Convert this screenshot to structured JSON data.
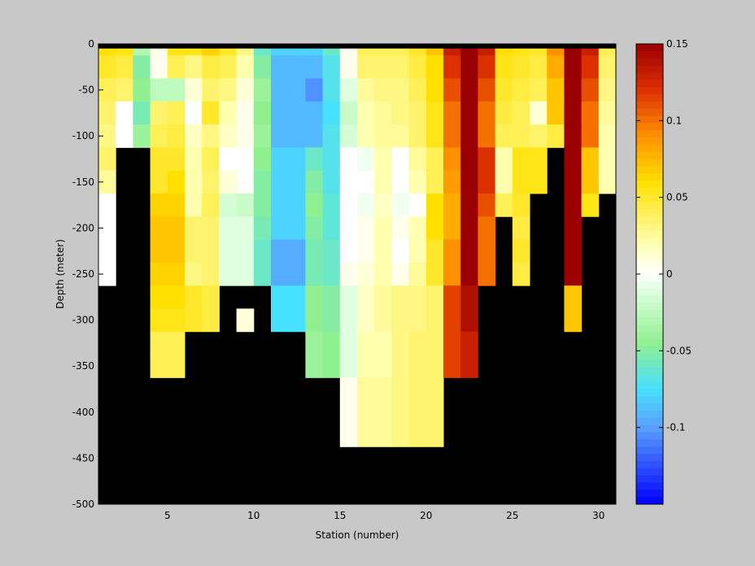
{
  "chart_data": {
    "type": "heatmap",
    "title": "",
    "xlabel": "Station (number)",
    "ylabel": "Depth (meter)",
    "xlim": [
      1,
      31
    ],
    "ylim": [
      -500,
      0
    ],
    "xticks": [
      5,
      10,
      15,
      20,
      25,
      30
    ],
    "yticks": [
      0,
      -50,
      -100,
      -150,
      -200,
      -250,
      -300,
      -350,
      -400,
      -450,
      -500
    ],
    "colorbar": {
      "range": [
        -0.15,
        0.15
      ],
      "ticks": [
        0.15,
        0.1,
        0.05,
        0,
        -0.05,
        -0.1
      ],
      "tick_labels": [
        "0.15",
        "0.1",
        "0.05",
        "0",
        "-0.05",
        "-0.1"
      ],
      "colormap": [
        [
          -0.15,
          "#0000ff"
        ],
        [
          -0.1,
          "#5aa0ff"
        ],
        [
          -0.075,
          "#48e0ff"
        ],
        [
          -0.045,
          "#90f090"
        ],
        [
          -0.01,
          "#e0ffe0"
        ],
        [
          0,
          "#ffffff"
        ],
        [
          0.02,
          "#ffffb0"
        ],
        [
          0.06,
          "#ffe000"
        ],
        [
          0.09,
          "#ff9000"
        ],
        [
          0.12,
          "#dd3000"
        ],
        [
          0.15,
          "#9a0000"
        ]
      ]
    },
    "no_data_color": "#000000",
    "depth_bins": [
      0,
      -12.5,
      -37.5,
      -62.5,
      -87.5,
      -112.5,
      -137.5,
      -162.5,
      -187.5,
      -212.5,
      -237.5,
      -262.5,
      -287.5,
      -312.5,
      -337.5,
      -362.5,
      -387.5,
      -412.5,
      -437.5,
      -462.5,
      -487.5,
      -500
    ],
    "stations": [
      1.5,
      2.5,
      3.5,
      4.5,
      5.5,
      6.5,
      7.5,
      8.5,
      9.5,
      10.5,
      11.5,
      12.5,
      13.5,
      14.5,
      15.5,
      16.5,
      17.5,
      18.5,
      19.5,
      20.5,
      21.5,
      22.5,
      23.5,
      24.5,
      25.5,
      26.5,
      27.5,
      28.5,
      29.5,
      30.5
    ],
    "values": [
      [
        0.06,
        0.055,
        -0.03,
        0.005,
        0.055,
        0.055,
        0.065,
        0.05,
        0.03,
        -0.06,
        -0.08,
        -0.08,
        -0.08,
        -0.06,
        0.005,
        0.04,
        0.04,
        0.04,
        0.05,
        0.07,
        0.13,
        0.15,
        0.13,
        0.06,
        0.055,
        0.05,
        0.09,
        0.15,
        0.13,
        0.04
      ],
      [
        0.05,
        0.045,
        -0.05,
        0.005,
        0.04,
        0.03,
        0.045,
        0.04,
        0.02,
        -0.05,
        -0.09,
        -0.09,
        -0.09,
        -0.07,
        0.005,
        0.035,
        0.035,
        0.035,
        0.045,
        0.06,
        0.12,
        0.15,
        0.12,
        0.055,
        0.05,
        0.045,
        0.08,
        0.15,
        0.12,
        0.035
      ],
      [
        0.04,
        0.035,
        -0.045,
        -0.025,
        -0.025,
        0.01,
        0.035,
        0.03,
        0.01,
        -0.04,
        -0.09,
        -0.09,
        -0.105,
        -0.07,
        -0.01,
        0.025,
        0.03,
        0.03,
        0.04,
        0.06,
        0.11,
        0.15,
        0.11,
        0.05,
        0.045,
        0.04,
        0.07,
        0.15,
        0.11,
        0.03
      ],
      [
        0.035,
        0.0,
        -0.055,
        0.035,
        0.04,
        0.0,
        0.05,
        0.02,
        0.005,
        -0.045,
        -0.09,
        -0.09,
        -0.09,
        -0.075,
        -0.02,
        0.02,
        0.025,
        0.03,
        0.035,
        0.055,
        0.1,
        0.15,
        0.1,
        0.045,
        0.04,
        0.01,
        0.07,
        0.15,
        0.1,
        0.025
      ],
      [
        0.03,
        0.0,
        -0.04,
        0.04,
        0.045,
        0.015,
        0.03,
        0.015,
        0.005,
        -0.04,
        -0.09,
        -0.09,
        -0.09,
        -0.07,
        -0.015,
        0.02,
        0.025,
        0.025,
        0.035,
        0.055,
        0.1,
        0.15,
        0.1,
        0.04,
        0.04,
        0.035,
        0.045,
        0.15,
        0.1,
        0.02
      ],
      [
        0.035,
        null,
        null,
        0.05,
        0.05,
        0.02,
        0.04,
        0.0,
        0.0,
        -0.045,
        -0.08,
        -0.08,
        -0.06,
        -0.07,
        0.0,
        -0.005,
        0.02,
        0.0,
        0.025,
        0.04,
        0.09,
        0.15,
        0.12,
        0.02,
        0.055,
        0.055,
        null,
        0.15,
        0.07,
        0.02
      ],
      [
        0.025,
        null,
        null,
        0.05,
        0.06,
        0.02,
        0.035,
        0.01,
        0.0,
        -0.05,
        -0.08,
        -0.08,
        -0.05,
        -0.07,
        0.0,
        0.0,
        0.02,
        0.0,
        0.02,
        0.04,
        0.085,
        0.15,
        0.12,
        0.02,
        0.055,
        0.055,
        null,
        0.15,
        0.07,
        0.02
      ],
      [
        0.0,
        null,
        null,
        0.065,
        0.065,
        0.02,
        0.04,
        -0.015,
        -0.02,
        -0.05,
        -0.08,
        -0.08,
        -0.045,
        -0.065,
        0.0,
        -0.005,
        0.015,
        -0.005,
        0.0,
        0.06,
        0.08,
        0.15,
        0.11,
        0.04,
        0.05,
        null,
        null,
        0.15,
        0.055,
        null
      ],
      [
        0.0,
        null,
        null,
        0.07,
        0.07,
        0.035,
        0.035,
        -0.01,
        -0.01,
        -0.055,
        -0.08,
        -0.08,
        -0.05,
        -0.065,
        0.0,
        0.005,
        0.02,
        0.005,
        0.02,
        0.06,
        0.08,
        0.15,
        0.1,
        null,
        0.045,
        null,
        null,
        0.15,
        null,
        null
      ],
      [
        0.0,
        null,
        null,
        0.07,
        0.07,
        0.035,
        0.035,
        -0.01,
        -0.01,
        -0.06,
        -0.095,
        -0.095,
        -0.055,
        -0.06,
        0.0,
        0.005,
        0.02,
        0.0,
        0.02,
        0.05,
        0.09,
        0.15,
        0.1,
        null,
        0.05,
        null,
        null,
        0.15,
        null,
        null
      ],
      [
        0.0,
        null,
        null,
        0.065,
        0.065,
        0.03,
        0.035,
        -0.01,
        -0.01,
        -0.06,
        -0.095,
        -0.095,
        -0.055,
        -0.06,
        0.005,
        0.01,
        0.02,
        0.005,
        0.025,
        0.05,
        0.09,
        0.15,
        0.1,
        null,
        0.045,
        null,
        null,
        0.15,
        null,
        null
      ],
      [
        null,
        null,
        null,
        0.06,
        0.06,
        0.05,
        0.045,
        null,
        null,
        null,
        -0.075,
        -0.075,
        -0.045,
        -0.05,
        -0.01,
        0.015,
        0.025,
        0.03,
        0.03,
        0.035,
        0.115,
        0.14,
        null,
        null,
        null,
        null,
        null,
        0.07,
        null,
        null
      ],
      [
        null,
        null,
        null,
        0.055,
        0.055,
        0.05,
        0.045,
        null,
        0.01,
        null,
        -0.075,
        -0.075,
        -0.045,
        -0.05,
        -0.01,
        0.015,
        0.025,
        0.03,
        0.03,
        0.035,
        0.115,
        0.14,
        null,
        null,
        null,
        null,
        null,
        0.07,
        null,
        null
      ],
      [
        null,
        null,
        null,
        0.04,
        0.04,
        null,
        null,
        null,
        null,
        null,
        null,
        null,
        -0.04,
        -0.045,
        -0.01,
        0.02,
        0.02,
        0.03,
        0.035,
        0.035,
        0.115,
        0.13,
        null,
        null,
        null,
        null,
        null,
        null,
        null,
        null
      ],
      [
        null,
        null,
        null,
        0.04,
        0.04,
        null,
        null,
        null,
        null,
        null,
        null,
        null,
        -0.04,
        -0.045,
        -0.01,
        0.02,
        0.02,
        0.03,
        0.035,
        0.035,
        0.115,
        0.13,
        null,
        null,
        null,
        null,
        null,
        null,
        null,
        null
      ],
      [
        null,
        null,
        null,
        null,
        null,
        null,
        null,
        null,
        null,
        null,
        null,
        null,
        null,
        null,
        0.005,
        0.025,
        0.025,
        0.03,
        0.035,
        0.035,
        null,
        null,
        null,
        null,
        null,
        null,
        null,
        null,
        null,
        null
      ],
      [
        null,
        null,
        null,
        null,
        null,
        null,
        null,
        null,
        null,
        null,
        null,
        null,
        null,
        null,
        0.005,
        0.025,
        0.025,
        0.03,
        0.035,
        0.035,
        null,
        null,
        null,
        null,
        null,
        null,
        null,
        null,
        null,
        null
      ],
      [
        null,
        null,
        null,
        null,
        null,
        null,
        null,
        null,
        null,
        null,
        null,
        null,
        null,
        null,
        0.005,
        0.025,
        0.025,
        0.03,
        0.035,
        0.035,
        null,
        null,
        null,
        null,
        null,
        null,
        null,
        null,
        null,
        null
      ],
      [
        null,
        null,
        null,
        null,
        null,
        null,
        null,
        null,
        null,
        null,
        null,
        null,
        null,
        null,
        null,
        null,
        null,
        null,
        null,
        null,
        null,
        null,
        null,
        null,
        null,
        null,
        null,
        null,
        null,
        null
      ],
      [
        null,
        null,
        null,
        null,
        null,
        null,
        null,
        null,
        null,
        null,
        null,
        null,
        null,
        null,
        null,
        null,
        null,
        null,
        null,
        null,
        null,
        null,
        null,
        null,
        null,
        null,
        null,
        null,
        null,
        null
      ],
      [
        null,
        null,
        null,
        null,
        null,
        null,
        null,
        null,
        null,
        null,
        null,
        null,
        null,
        null,
        null,
        null,
        null,
        null,
        null,
        null,
        null,
        null,
        null,
        null,
        null,
        null,
        null,
        null,
        null,
        null
      ]
    ]
  }
}
